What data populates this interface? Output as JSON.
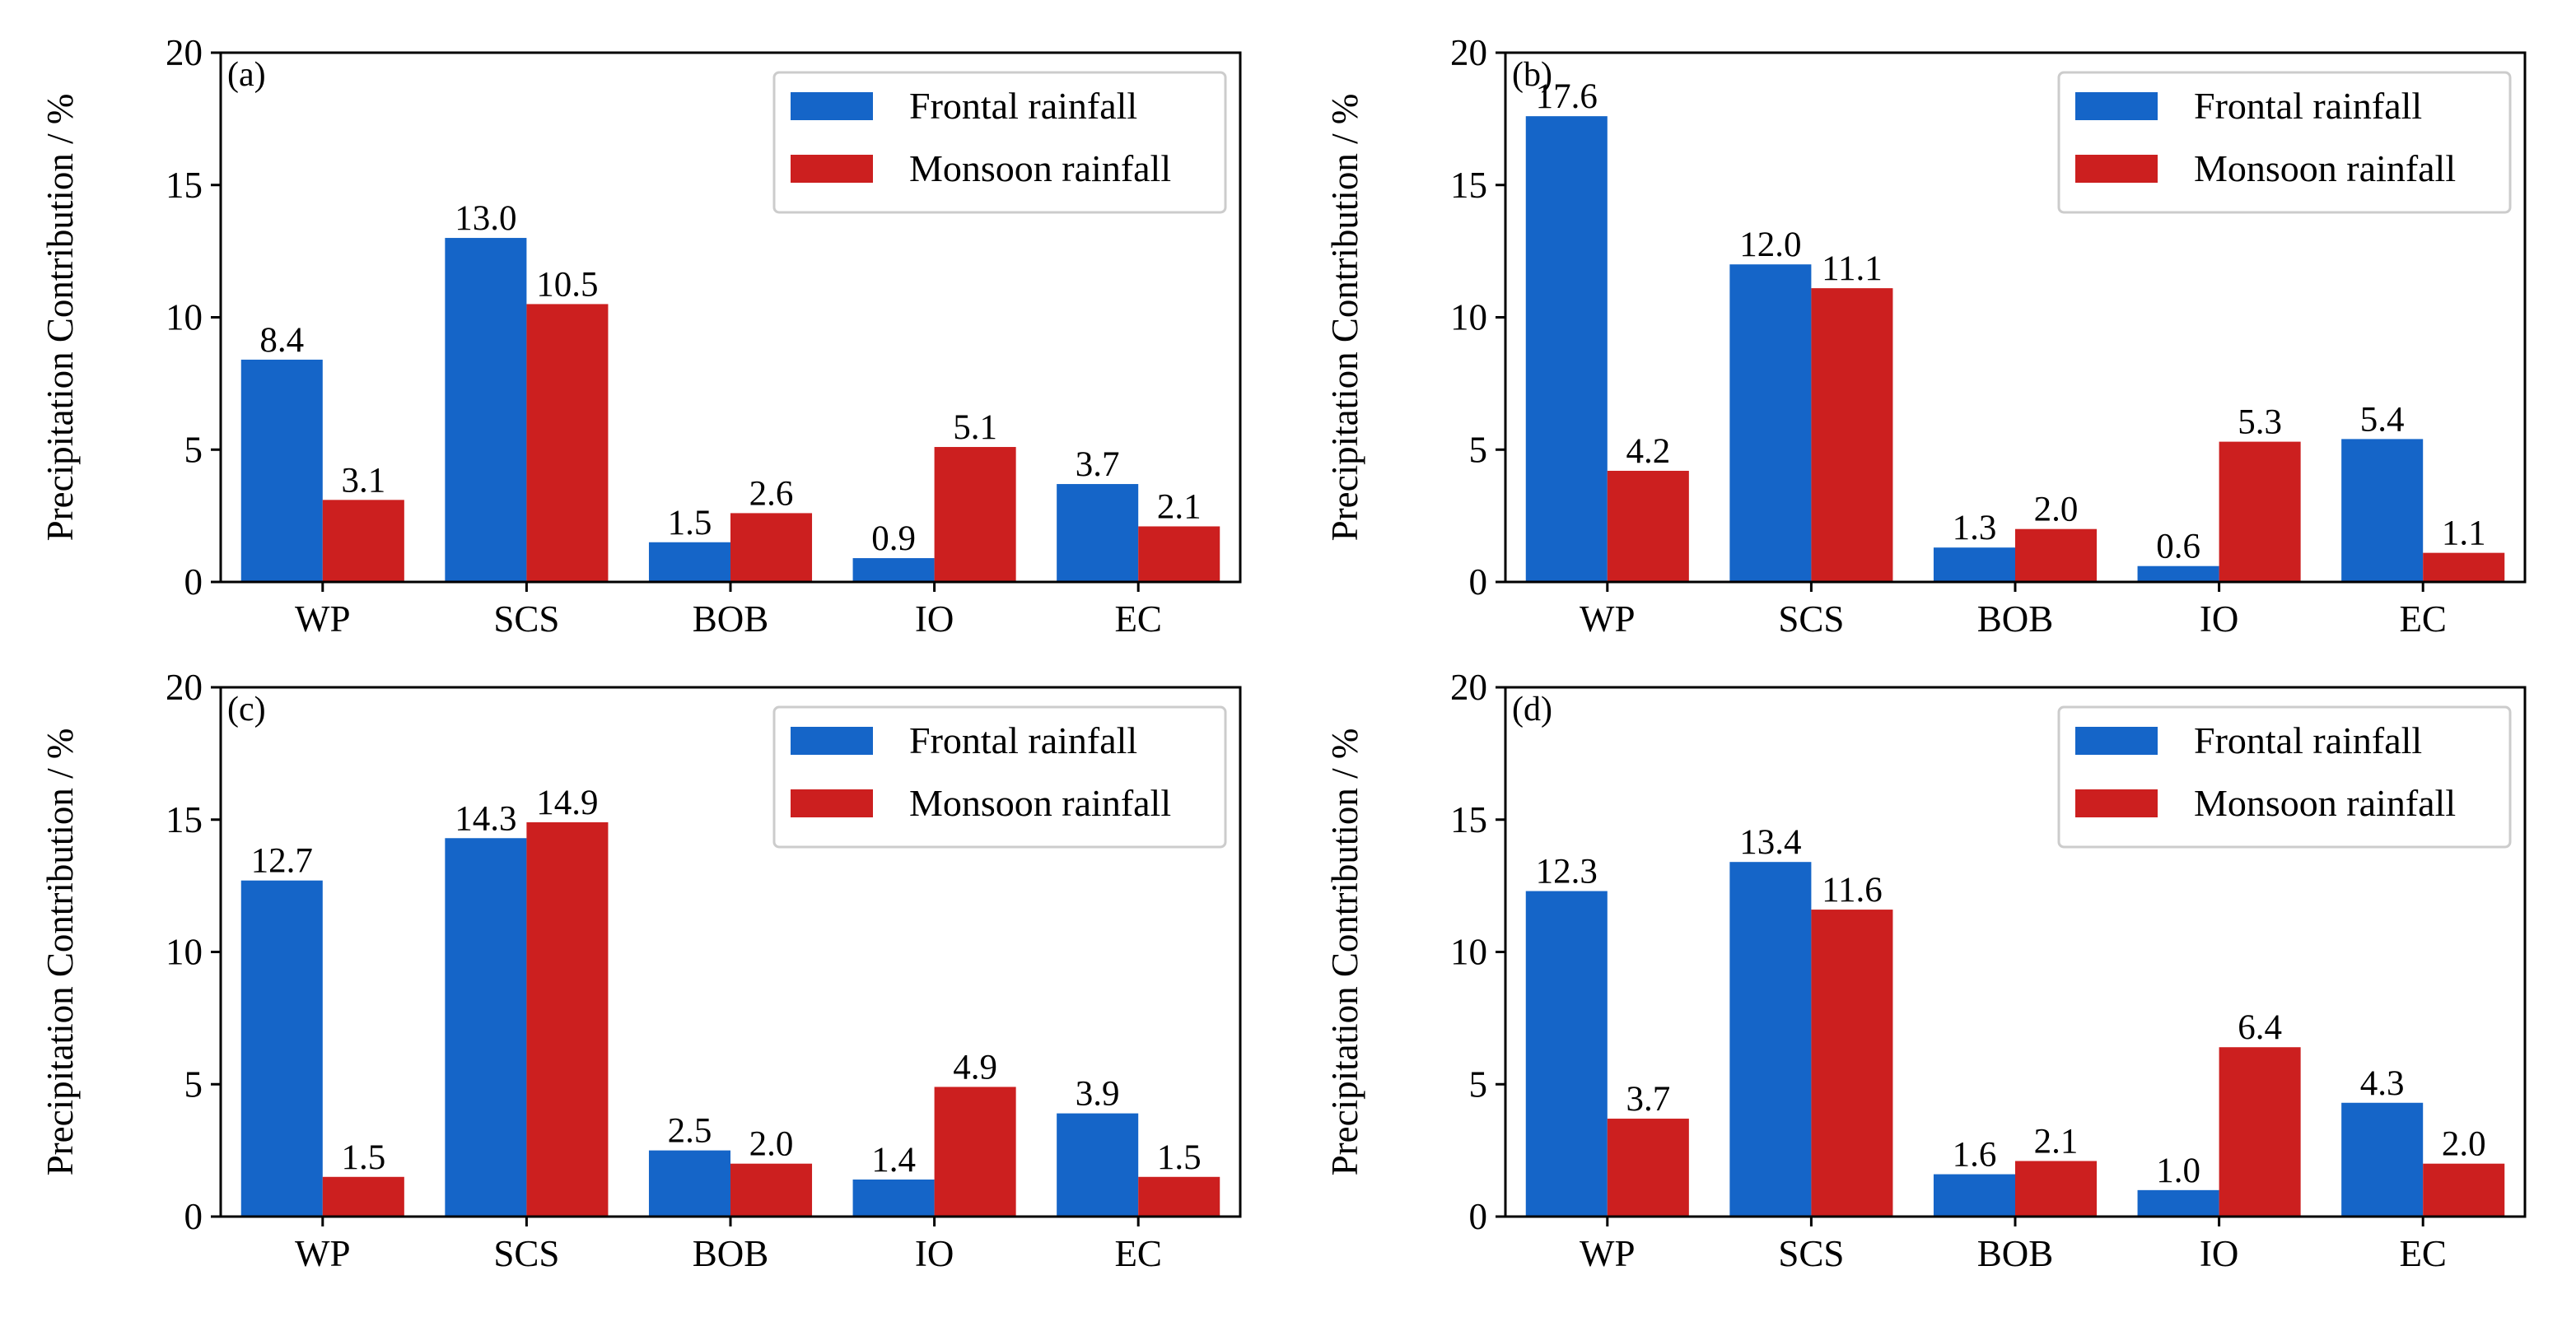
{
  "colors": {
    "frontal": "#1565C8",
    "monsoon": "#CC1F1F"
  },
  "chart_data": [
    {
      "type": "bar",
      "panel_label": "(a)",
      "categories": [
        "WP",
        "SCS",
        "BOB",
        "IO",
        "EC"
      ],
      "series": [
        {
          "name": "Frontal rainfall",
          "values": [
            8.4,
            13.0,
            1.5,
            0.9,
            3.7
          ],
          "labels": [
            "8.4",
            "13.0",
            "1.5",
            "0.9",
            "3.7"
          ]
        },
        {
          "name": "Monsoon rainfall",
          "values": [
            3.1,
            10.5,
            2.6,
            5.1,
            2.1
          ],
          "labels": [
            "3.1",
            "10.5",
            "2.6",
            "5.1",
            "2.1"
          ]
        }
      ],
      "ylabel": "Precipitation Contribution / %",
      "ylim": [
        0,
        20
      ],
      "yticks": [
        "0",
        "5",
        "10",
        "15",
        "20"
      ],
      "legend": "upper-right"
    },
    {
      "type": "bar",
      "panel_label": "(b)",
      "categories": [
        "WP",
        "SCS",
        "BOB",
        "IO",
        "EC"
      ],
      "series": [
        {
          "name": "Frontal rainfall",
          "values": [
            17.6,
            12.0,
            1.3,
            0.6,
            5.4
          ],
          "labels": [
            "17.6",
            "12.0",
            "1.3",
            "0.6",
            "5.4"
          ]
        },
        {
          "name": "Monsoon rainfall",
          "values": [
            4.2,
            11.1,
            2.0,
            5.3,
            1.1
          ],
          "labels": [
            "4.2",
            "11.1",
            "2.0",
            "5.3",
            "1.1"
          ]
        }
      ],
      "ylabel": "Precipitation Contribution / %",
      "ylim": [
        0,
        20
      ],
      "yticks": [
        "0",
        "5",
        "10",
        "15",
        "20"
      ],
      "legend": "upper-right"
    },
    {
      "type": "bar",
      "panel_label": "(c)",
      "categories": [
        "WP",
        "SCS",
        "BOB",
        "IO",
        "EC"
      ],
      "series": [
        {
          "name": "Frontal rainfall",
          "values": [
            12.7,
            14.3,
            2.5,
            1.4,
            3.9
          ],
          "labels": [
            "12.7",
            "14.3",
            "2.5",
            "1.4",
            "3.9"
          ]
        },
        {
          "name": "Monsoon rainfall",
          "values": [
            1.5,
            14.9,
            2.0,
            4.9,
            1.5
          ],
          "labels": [
            "1.5",
            "14.9",
            "2.0",
            "4.9",
            "1.5"
          ]
        }
      ],
      "ylabel": "Precipitation Contribution / %",
      "ylim": [
        0,
        20
      ],
      "yticks": [
        "0",
        "5",
        "10",
        "15",
        "20"
      ],
      "legend": "upper-right"
    },
    {
      "type": "bar",
      "panel_label": "(d)",
      "categories": [
        "WP",
        "SCS",
        "BOB",
        "IO",
        "EC"
      ],
      "series": [
        {
          "name": "Frontal rainfall",
          "values": [
            12.3,
            13.4,
            1.6,
            1.0,
            4.3
          ],
          "labels": [
            "12.3",
            "13.4",
            "1.6",
            "1.0",
            "4.3"
          ]
        },
        {
          "name": "Monsoon rainfall",
          "values": [
            3.7,
            11.6,
            2.1,
            6.4,
            2.0
          ],
          "labels": [
            "3.7",
            "11.6",
            "2.1",
            "6.4",
            "2.0"
          ]
        }
      ],
      "ylabel": "Precipitation Contribution / %",
      "ylim": [
        0,
        20
      ],
      "yticks": [
        "0",
        "5",
        "10",
        "15",
        "20"
      ],
      "legend": "upper-right"
    }
  ]
}
